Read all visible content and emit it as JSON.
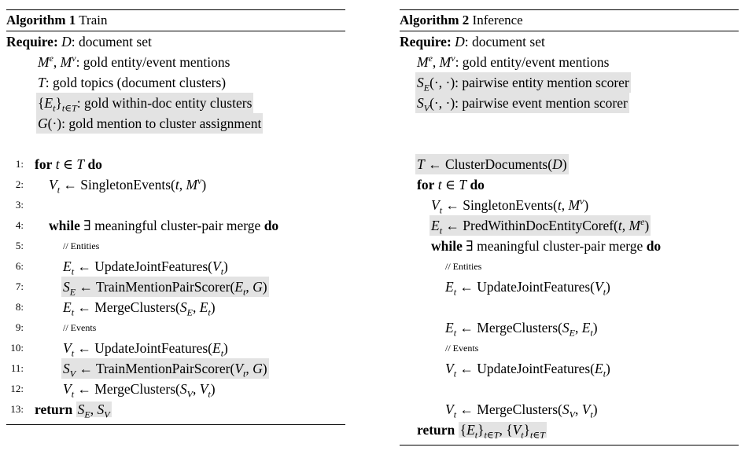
{
  "alg1": {
    "caption_label": "Algorithm 1",
    "caption_title": "Train",
    "require_label": "Require:",
    "require": [
      "D: document set",
      "Me, Mv: gold entity/event mentions",
      "T: gold topics (document clusters)",
      "{Et}t∈T: gold within-doc entity clusters",
      "G(·): gold mention to cluster assignment"
    ],
    "lines": [
      {
        "num": "1:",
        "text": "for t ∈ T do"
      },
      {
        "num": "2:",
        "text": "Vt ← SingletonEvents(t, Mv)"
      },
      {
        "num": "3:",
        "text": ""
      },
      {
        "num": "4:",
        "text": "while ∃ meaningful cluster-pair merge do"
      },
      {
        "num": "5:",
        "text": "// Entities"
      },
      {
        "num": "6:",
        "text": "Et ← UpdateJointFeatures(Vt)"
      },
      {
        "num": "7:",
        "text": "SE ← TrainMentionPairScorer(Et, G)"
      },
      {
        "num": "8:",
        "text": "Et ← MergeClusters(SE, Et)"
      },
      {
        "num": "9:",
        "text": "// Events"
      },
      {
        "num": "10:",
        "text": "Vt ← UpdateJointFeatures(Et)"
      },
      {
        "num": "11:",
        "text": "SV ← TrainMentionPairScorer(Vt, G)"
      },
      {
        "num": "12:",
        "text": "Vt ← MergeClusters(SV, Vt)"
      },
      {
        "num": "13:",
        "text": "return SE, SV"
      }
    ]
  },
  "alg2": {
    "caption_label": "Algorithm 2",
    "caption_title": "Inference",
    "require_label": "Require:",
    "require": [
      "D: document set",
      "Me, Mv: gold entity/event mentions",
      "SE(·,·): pairwise entity mention scorer",
      "SV(·,·): pairwise event mention scorer"
    ],
    "lines": [
      "T ← ClusterDocuments(D)",
      "for t ∈ T do",
      "Vt ← SingletonEvents(t, Mv)",
      "Et ← PredWithinDocEntityCoref(t, Me)",
      "while ∃ meaningful cluster-pair merge do",
      "// Entities",
      "Et ← UpdateJointFeatures(Vt)",
      "",
      "Et ← MergeClusters(SE, Et)",
      "// Events",
      "Vt ← UpdateJointFeatures(Et)",
      "",
      "Vt ← MergeClusters(SV, Vt)",
      "return {Et}t∈T, {Vt}t∈T"
    ]
  }
}
